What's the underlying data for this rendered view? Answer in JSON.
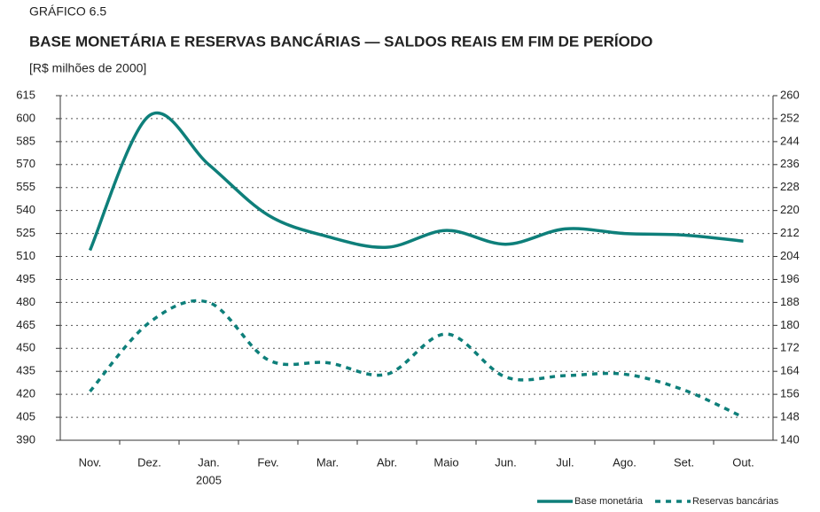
{
  "chart_data": {
    "type": "line",
    "kicker": "GRÁFICO 6.5",
    "title": "BASE MONETÁRIA E RESERVAS BANCÁRIAS — SALDOS REAIS EM FIM DE PERÍODO",
    "subtitle": "[R$ milhões de 2000]",
    "categories": [
      "Nov.",
      "Dez.",
      "Jan.",
      "Fev.",
      "Mar.",
      "Abr.",
      "Maio",
      "Jun.",
      "Jul.",
      "Ago.",
      "Set.",
      "Out."
    ],
    "year_label": "2005",
    "series": [
      {
        "name": "Base monetária",
        "color": "#0e7f7a",
        "line_style": "solid",
        "values": [
          514,
          602,
          570,
          537,
          523,
          516,
          527,
          518,
          528,
          525,
          524,
          520
        ]
      },
      {
        "name": "Reservas bancárias",
        "color": "#0e7f7a",
        "line_style": "dashed",
        "axis": "y2",
        "values": [
          157,
          181,
          188,
          168,
          167,
          163,
          177,
          162,
          162.5,
          163,
          157.5,
          148
        ]
      }
    ],
    "ylim": [
      390,
      615
    ],
    "yticks": [
      390,
      405,
      420,
      435,
      450,
      465,
      480,
      495,
      510,
      525,
      540,
      555,
      570,
      585,
      600,
      615
    ],
    "y2lim": [
      140,
      260
    ],
    "y2ticks": [
      140,
      148,
      156,
      164,
      172,
      180,
      188,
      196,
      204,
      212,
      220,
      228,
      236,
      244,
      252,
      260
    ],
    "grid": true,
    "legend": "bottom-right"
  }
}
